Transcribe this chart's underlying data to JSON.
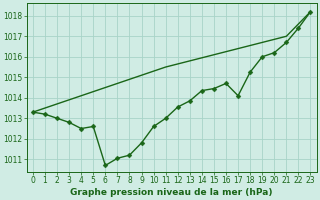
{
  "xlabel": "Graphe pression niveau de la mer (hPa)",
  "ylim": [
    1010.4,
    1018.6
  ],
  "xlim": [
    -0.5,
    23.5
  ],
  "yticks": [
    1011,
    1012,
    1013,
    1014,
    1015,
    1016,
    1017,
    1018
  ],
  "xticks": [
    0,
    1,
    2,
    3,
    4,
    5,
    6,
    7,
    8,
    9,
    10,
    11,
    12,
    13,
    14,
    15,
    16,
    17,
    18,
    19,
    20,
    21,
    22,
    23
  ],
  "background_color": "#d0ece4",
  "grid_color": "#a8d4c8",
  "line_color": "#1a6618",
  "data_x": [
    0,
    1,
    2,
    3,
    4,
    5,
    6,
    7,
    8,
    9,
    10,
    11,
    12,
    13,
    14,
    15,
    16,
    17,
    18,
    19,
    20,
    21,
    22,
    23
  ],
  "data_y_zigzag": [
    1013.3,
    1013.2,
    1013.0,
    1012.8,
    1012.5,
    1012.6,
    1010.7,
    1011.05,
    1011.2,
    1011.8,
    1012.6,
    1013.0,
    1013.55,
    1013.85,
    1014.35,
    1014.45,
    1014.7,
    1014.1,
    1015.25,
    1016.0,
    1016.2,
    1016.7,
    1017.4,
    1018.2
  ],
  "data_y_smooth": [
    1013.3,
    1013.5,
    1013.7,
    1013.9,
    1014.1,
    1014.3,
    1014.5,
    1014.7,
    1014.9,
    1015.1,
    1015.3,
    1015.5,
    1015.65,
    1015.8,
    1015.95,
    1016.1,
    1016.25,
    1016.4,
    1016.55,
    1016.7,
    1016.85,
    1017.0,
    1017.6,
    1018.2
  ],
  "marker": "D",
  "markersize": 2.5,
  "linewidth": 1.0,
  "tick_fontsize": 5.5,
  "label_fontsize": 6.5,
  "label_fontweight": "bold"
}
